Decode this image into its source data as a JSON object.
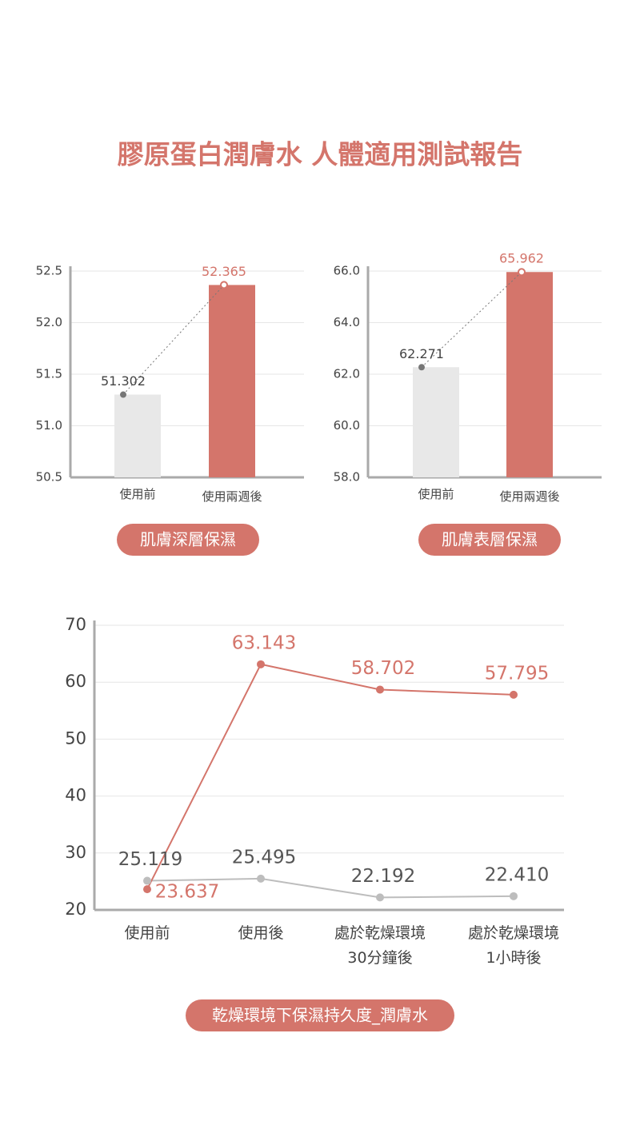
{
  "title": "膠原蛋白潤膚水 人體適用測試報告",
  "chart_data": [
    {
      "type": "bar",
      "caption": "肌膚深層保濕",
      "categories": [
        "使用前",
        "使用兩週後"
      ],
      "values": [
        51.302,
        52.365
      ],
      "colors": [
        "#e8e8e8",
        "#d4756b"
      ],
      "ylim": [
        50.5,
        52.5
      ],
      "yticks": [
        50.5,
        {
          "value": 51,
          "label": "51.0"
        },
        51.5,
        {
          "value": 52,
          "label": "52.0"
        },
        52.5
      ],
      "grid": true
    },
    {
      "type": "bar",
      "caption": "肌膚表層保濕",
      "categories": [
        "使用前",
        "使用兩週後"
      ],
      "values": [
        62.271,
        65.962
      ],
      "colors": [
        "#e8e8e8",
        "#d4756b"
      ],
      "ylim": [
        58,
        66
      ],
      "yticks": [
        {
          "value": 58,
          "label": "58.0"
        },
        {
          "value": 60,
          "label": "60.0"
        },
        {
          "value": 62,
          "label": "62.0"
        },
        {
          "value": 64,
          "label": "64.0"
        },
        {
          "value": 66,
          "label": "66.0"
        }
      ],
      "grid": true
    },
    {
      "type": "line",
      "caption": "乾燥環境下保濕持久度_潤膚水",
      "categories": [
        "使用前",
        "使用後",
        "處於乾燥環境\n30分鐘後",
        "處於乾燥環境\n1小時後"
      ],
      "series": [
        {
          "color": "#bdbdbd",
          "values": [
            25.119,
            25.495,
            22.192,
            22.41
          ],
          "value_labels": [
            "25.119",
            "25.495",
            "22.192",
            "22.410"
          ]
        },
        {
          "color": "#d4756b",
          "values": [
            23.637,
            63.143,
            58.702,
            57.795
          ]
        }
      ],
      "ylim": [
        20,
        70
      ],
      "yticks": [
        20,
        30,
        40,
        50,
        60,
        70
      ],
      "grid": true
    }
  ]
}
